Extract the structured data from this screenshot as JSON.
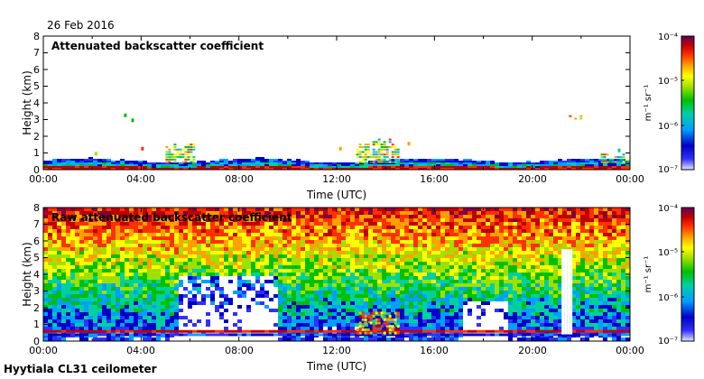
{
  "header": {
    "date": "26 Feb 2016"
  },
  "footer": {
    "station": "Hyytiala CL31 ceilometer"
  },
  "colors": {
    "scale": [
      "#e6e6ff",
      "#3030ff",
      "#0000c8",
      "#00a0ff",
      "#00d0a0",
      "#00c000",
      "#a0e000",
      "#ffff00",
      "#ffa000",
      "#ff3000",
      "#c00000",
      "#800040",
      "#600060"
    ]
  },
  "chart_data": [
    {
      "type": "heatmap",
      "title": "Attenuated backscatter coefficient",
      "xlabel": "Time (UTC)",
      "ylabel": "Height (km)",
      "xlim": [
        0,
        24
      ],
      "ylim": [
        0,
        8
      ],
      "xticks": [
        "00:00",
        "04:00",
        "08:00",
        "12:00",
        "16:00",
        "20:00",
        "00:00"
      ],
      "yticks": [
        "0",
        "1",
        "2",
        "3",
        "4",
        "5",
        "6",
        "7",
        "8"
      ],
      "colorbar": {
        "label": "m⁻¹ sr⁻¹",
        "ticks": [
          "10⁻⁴",
          "10⁻⁵",
          "10⁻⁶",
          "10⁻⁷"
        ],
        "range_log10": [
          -7,
          -4
        ]
      },
      "features": [
        {
          "name": "boundary-layer",
          "hour_start": 0,
          "hour_end": 24,
          "top_km": 0.5
        },
        {
          "name": "cloud-block-1",
          "hour_start": 5.0,
          "hour_end": 6.2,
          "top_km": 1.7
        },
        {
          "name": "cloud-block-2",
          "hour_start": 12.8,
          "hour_end": 14.5,
          "top_km": 1.8
        },
        {
          "name": "cloud-block-3",
          "hour_start": 22.8,
          "hour_end": 24,
          "top_km": 1.0
        },
        {
          "name": "elevated-layer",
          "hour_start": 21.5,
          "hour_end": 22.0,
          "top_km": 3.4
        }
      ]
    },
    {
      "type": "heatmap",
      "title": "Raw attenuated backscatter coefficient",
      "xlabel": "Time (UTC)",
      "ylabel": "Height (km)",
      "xlim": [
        0,
        24
      ],
      "ylim": [
        0,
        8
      ],
      "xticks": [
        "00:00",
        "04:00",
        "08:00",
        "12:00",
        "16:00",
        "20:00",
        "00:00"
      ],
      "yticks": [
        "0",
        "1",
        "2",
        "3",
        "4",
        "5",
        "6",
        "7",
        "8"
      ],
      "colorbar": {
        "label": "m⁻¹ sr⁻¹",
        "ticks": [
          "10⁻⁴",
          "10⁻⁵",
          "10⁻⁶",
          "10⁻⁷"
        ],
        "range_log10": [
          -7,
          -4
        ]
      },
      "features": [
        {
          "name": "noise-gradient",
          "hour_start": 0,
          "hour_end": 24,
          "top_km": 8
        },
        {
          "name": "precip-column",
          "hour_start": 21.2,
          "hour_end": 21.6,
          "top_km": 5.5
        }
      ]
    }
  ]
}
